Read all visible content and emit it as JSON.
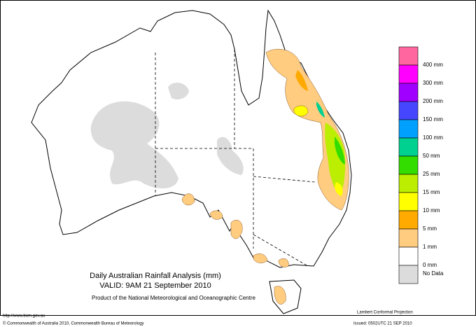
{
  "map": {
    "title": "Daily Australian Rainfall Analysis (mm)",
    "valid": "VALID: 9AM 21 September 2010",
    "product": "Product of the National Meteorological and Oceanographic Centre",
    "url": "http://www.bom.gov.au",
    "copyright": "© Commonwealth of Australia 2010, Commonwealth Bureau of Meteorology",
    "projection": "Lambert Conformal Projection",
    "issued": "Issued: 0502UTC 21 SEP 2010"
  },
  "legend": {
    "items": [
      {
        "color": "#ff66a0",
        "label": "400 mm"
      },
      {
        "color": "#ff00ff",
        "label": "300 mm"
      },
      {
        "color": "#a000ff",
        "label": "200 mm"
      },
      {
        "color": "#4646ff",
        "label": "150 mm"
      },
      {
        "color": "#00a0ff",
        "label": "100 mm"
      },
      {
        "color": "#00d090",
        "label": "50 mm"
      },
      {
        "color": "#33dd00",
        "label": "25 mm"
      },
      {
        "color": "#bbee00",
        "label": "15 mm"
      },
      {
        "color": "#ffff00",
        "label": "10 mm"
      },
      {
        "color": "#ffaa00",
        "label": "5 mm"
      },
      {
        "color": "#ffcc80",
        "label": "1 mm"
      },
      {
        "color": "#ffffff",
        "label": "0 mm"
      },
      {
        "color": "#dcdcdc",
        "label": "No Data"
      }
    ]
  }
}
